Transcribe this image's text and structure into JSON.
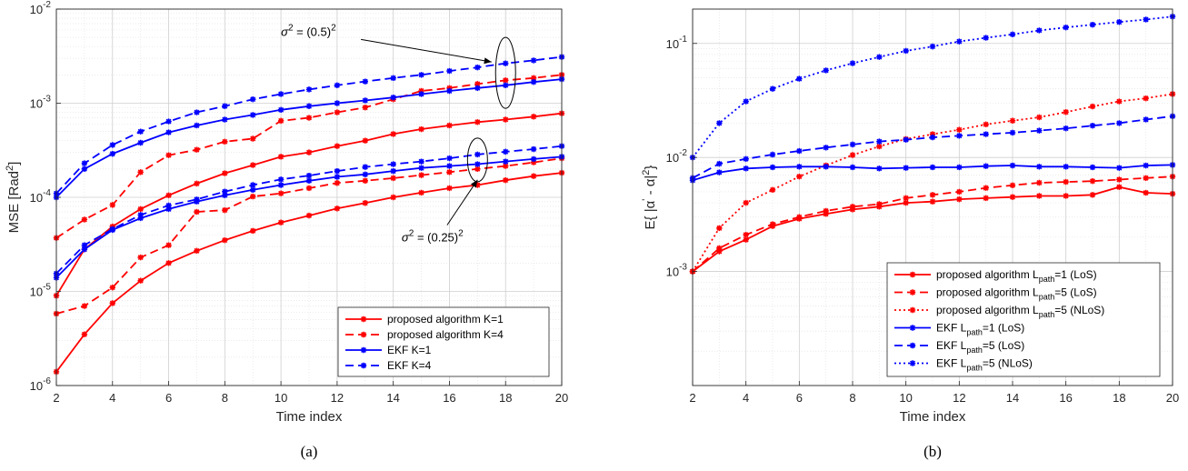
{
  "chart_data": [
    {
      "type": "line",
      "panel_label": "(a)",
      "xlabel": "Time index",
      "ylabel_main": "MSE [Rad",
      "ylabel_sup": "2",
      "ylabel_end": "]",
      "yscale": "log",
      "xlim": [
        2,
        20
      ],
      "ylim": [
        1e-06,
        0.01
      ],
      "xticks": [
        2,
        4,
        6,
        8,
        10,
        12,
        14,
        16,
        18,
        20
      ],
      "yticks": [
        {
          "value": 1e-06,
          "base": "10",
          "exp": "-6"
        },
        {
          "value": 1e-05,
          "base": "10",
          "exp": "-5"
        },
        {
          "value": 0.0001,
          "base": "10",
          "exp": "-4"
        },
        {
          "value": 0.001,
          "base": "10",
          "exp": "-3"
        },
        {
          "value": 0.01,
          "base": "10",
          "exp": "-2"
        }
      ],
      "grid": true,
      "legend_position": "bottom-right",
      "x": [
        2,
        3,
        4,
        5,
        6,
        7,
        8,
        9,
        10,
        11,
        12,
        13,
        14,
        15,
        16,
        17,
        18,
        19,
        20
      ],
      "series": [
        {
          "name": "proposed algorithm K=1",
          "color": "#ff0000",
          "dash": "solid",
          "values": [
            1.4e-06,
            3.5e-06,
            7.5e-06,
            1.3e-05,
            2e-05,
            2.7e-05,
            3.5e-05,
            4.4e-05,
            5.4e-05,
            6.4e-05,
            7.6e-05,
            8.7e-05,
            0.0001,
            0.000112,
            0.000125,
            0.000135,
            0.000152,
            0.000168,
            0.000182
          ]
        },
        {
          "name": "proposed algorithm K=4",
          "color": "#ff0000",
          "dash": "dashed",
          "values": [
            5.8e-06,
            7e-06,
            1.1e-05,
            2.3e-05,
            3.1e-05,
            7e-05,
            7.3e-05,
            0.000102,
            0.00011,
            0.000125,
            0.000142,
            0.00015,
            0.00016,
            0.000172,
            0.000185,
            0.0002,
            0.000215,
            0.000235,
            0.00026
          ]
        },
        {
          "name": "proposed algorithm K=1",
          "color": "#ff0000",
          "dash": "solid",
          "values": [
            9e-06,
            2.8e-05,
            4.9e-05,
            7.5e-05,
            0.000105,
            0.00014,
            0.00018,
            0.00022,
            0.00027,
            0.0003,
            0.00035,
            0.0004,
            0.00047,
            0.00053,
            0.00058,
            0.00063,
            0.00067,
            0.00072,
            0.00078
          ]
        },
        {
          "name": "proposed algorithm K=4",
          "color": "#ff0000",
          "dash": "dashed",
          "values": [
            3.7e-05,
            5.8e-05,
            8.3e-05,
            0.000185,
            0.00028,
            0.00032,
            0.00039,
            0.00042,
            0.00065,
            0.0007,
            0.0008,
            0.0009,
            0.0011,
            0.00135,
            0.00145,
            0.0016,
            0.00175,
            0.00185,
            0.002
          ]
        },
        {
          "name": "EKF K=1",
          "color": "#0000ff",
          "dash": "solid",
          "values": [
            1.4e-05,
            2.8e-05,
            4.5e-05,
            6e-05,
            7.5e-05,
            9e-05,
            0.000105,
            0.00012,
            0.000135,
            0.00015,
            0.000165,
            0.000175,
            0.00019,
            0.000205,
            0.000215,
            0.000225,
            0.00024,
            0.000255,
            0.00027
          ]
        },
        {
          "name": "EKF K=4",
          "color": "#0000ff",
          "dash": "dashed",
          "values": [
            1.55e-05,
            3.1e-05,
            4.6e-05,
            6.5e-05,
            8.2e-05,
            9.5e-05,
            0.000115,
            0.000135,
            0.000155,
            0.00017,
            0.00019,
            0.00021,
            0.000225,
            0.00024,
            0.00026,
            0.000285,
            0.000305,
            0.000325,
            0.00035
          ]
        },
        {
          "name": "EKF K=1",
          "color": "#0000ff",
          "dash": "solid",
          "values": [
            0.0001,
            0.0002,
            0.00029,
            0.00038,
            0.00049,
            0.00058,
            0.00067,
            0.00075,
            0.00085,
            0.00093,
            0.001,
            0.00107,
            0.00115,
            0.00125,
            0.00135,
            0.00145,
            0.00155,
            0.00168,
            0.0018
          ]
        },
        {
          "name": "EKF K=4",
          "color": "#0000ff",
          "dash": "dashed",
          "values": [
            0.00011,
            0.00023,
            0.00036,
            0.0005,
            0.00064,
            0.0008,
            0.00093,
            0.0011,
            0.00125,
            0.0014,
            0.00155,
            0.0017,
            0.00185,
            0.002,
            0.0022,
            0.0024,
            0.00265,
            0.00285,
            0.0031
          ]
        }
      ],
      "legend": [
        {
          "label": "proposed algorithm K=1",
          "color": "#ff0000",
          "dash": "solid"
        },
        {
          "label": "proposed algorithm K=4",
          "color": "#ff0000",
          "dash": "dashed"
        },
        {
          "label": "EKF K=1",
          "color": "#0000ff",
          "dash": "solid"
        },
        {
          "label": "EKF K=4",
          "color": "#0000ff",
          "dash": "dashed"
        }
      ],
      "annotations": [
        {
          "base": "σ",
          "sup": "2",
          "rest": " = (0.5)",
          "sup2": "2",
          "text_x": 10.0,
          "text_y": 0.0052,
          "ellipse_x": 18.0,
          "ellipse_y": 0.0021,
          "arrow_x": 17.5,
          "arrow_y": 0.0017
        },
        {
          "base": "σ",
          "sup": "2",
          "rest": " = (0.25)",
          "sup2": "2",
          "text_x": 14.3,
          "text_y": 3.4e-05,
          "ellipse_x": 17.0,
          "ellipse_y": 0.00025,
          "arrow_x": 17.0,
          "arrow_y": 0.00013
        }
      ]
    },
    {
      "type": "line",
      "panel_label": "(b)",
      "xlabel": "Time index",
      "ylabel_main": "E{ |α",
      "ylabel_mid": "'",
      "ylabel_rest": " - α|",
      "ylabel_sup": "2",
      "ylabel_end": "}",
      "yscale": "log",
      "xlim": [
        2,
        20
      ],
      "ylim": [
        0.0001,
        0.2
      ],
      "xticks": [
        2,
        4,
        6,
        8,
        10,
        12,
        14,
        16,
        18,
        20
      ],
      "yticks": [
        {
          "value": 0.001,
          "base": "10",
          "exp": "-3"
        },
        {
          "value": 0.01,
          "base": "10",
          "exp": "-2"
        },
        {
          "value": 0.1,
          "base": "10",
          "exp": "-1"
        }
      ],
      "grid": true,
      "legend_position": "bottom-right",
      "x": [
        2,
        3,
        4,
        5,
        6,
        7,
        8,
        9,
        10,
        11,
        12,
        13,
        14,
        15,
        16,
        17,
        18,
        19,
        20
      ],
      "series": [
        {
          "name": "proposed algorithm L=1 (LoS)",
          "color": "#ff0000",
          "dash": "solid",
          "values": [
            0.001,
            0.0015,
            0.0019,
            0.0025,
            0.0029,
            0.0032,
            0.0035,
            0.0037,
            0.004,
            0.0041,
            0.0043,
            0.0044,
            0.0045,
            0.0046,
            0.0046,
            0.0047,
            0.0055,
            0.0049,
            0.0048
          ]
        },
        {
          "name": "proposed algorithm L=5 (LoS)",
          "color": "#ff0000",
          "dash": "dashed",
          "values": [
            0.001,
            0.0016,
            0.0021,
            0.0026,
            0.003,
            0.0034,
            0.0037,
            0.0039,
            0.0044,
            0.0047,
            0.005,
            0.0054,
            0.0057,
            0.006,
            0.0061,
            0.0062,
            0.0064,
            0.0066,
            0.0068
          ]
        },
        {
          "name": "proposed algorithm L=5 (NLoS)",
          "color": "#ff0000",
          "dash": "dotted",
          "values": [
            0.001,
            0.0024,
            0.004,
            0.0052,
            0.0068,
            0.0085,
            0.0105,
            0.0125,
            0.0145,
            0.016,
            0.0175,
            0.0195,
            0.021,
            0.0225,
            0.025,
            0.028,
            0.031,
            0.033,
            0.036
          ]
        },
        {
          "name": "EKF L=1 (LoS)",
          "color": "#0000ff",
          "dash": "solid",
          "values": [
            0.0063,
            0.0074,
            0.008,
            0.0082,
            0.0083,
            0.0083,
            0.0082,
            0.008,
            0.0081,
            0.0082,
            0.0082,
            0.0084,
            0.0085,
            0.0083,
            0.0083,
            0.0082,
            0.0081,
            0.0085,
            0.0086
          ]
        },
        {
          "name": "EKF L=5 (LoS)",
          "color": "#0000ff",
          "dash": "dashed",
          "values": [
            0.0066,
            0.0088,
            0.0097,
            0.0106,
            0.0114,
            0.0122,
            0.013,
            0.0138,
            0.0143,
            0.015,
            0.0155,
            0.016,
            0.0165,
            0.0172,
            0.018,
            0.019,
            0.02,
            0.0215,
            0.023
          ]
        },
        {
          "name": "EKF L=5 (NLoS)",
          "color": "#0000ff",
          "dash": "dotted",
          "values": [
            0.01,
            0.02,
            0.031,
            0.04,
            0.049,
            0.058,
            0.067,
            0.076,
            0.086,
            0.094,
            0.104,
            0.112,
            0.12,
            0.13,
            0.138,
            0.146,
            0.154,
            0.162,
            0.172
          ]
        }
      ],
      "legend": [
        {
          "label": "proposed algorithm L",
          "sub": "path",
          "tail": "=1 (LoS)",
          "color": "#ff0000",
          "dash": "solid"
        },
        {
          "label": "proposed algorithm L",
          "sub": "path",
          "tail": "=5 (LoS)",
          "color": "#ff0000",
          "dash": "dashed"
        },
        {
          "label": "proposed algorithm L",
          "sub": "path",
          "tail": "=5 (NLoS)",
          "color": "#ff0000",
          "dash": "dotted"
        },
        {
          "label": "EKF L",
          "sub": "path",
          "tail": "=1 (LoS)",
          "color": "#0000ff",
          "dash": "solid"
        },
        {
          "label": "EKF L",
          "sub": "path",
          "tail": "=5 (LoS)",
          "color": "#0000ff",
          "dash": "dashed"
        },
        {
          "label": "EKF L",
          "sub": "path",
          "tail": "=5 (NLoS)",
          "color": "#0000ff",
          "dash": "dotted"
        }
      ],
      "annotations": []
    }
  ]
}
